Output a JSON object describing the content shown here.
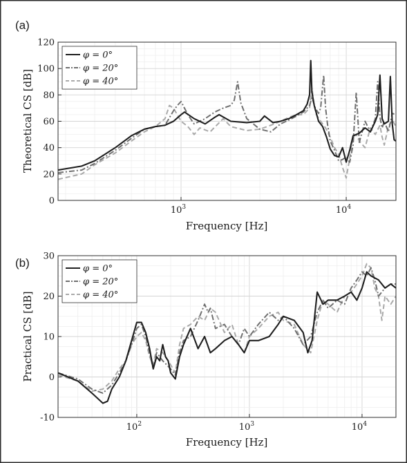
{
  "colors": {
    "s0": "#1f1f1f",
    "s20": "#6f6f6f",
    "s40": "#a9a9a9",
    "grid": "#dedede",
    "border": "#2b2b2b"
  },
  "chart_data": [
    {
      "type": "line",
      "panel_label": "(a)",
      "xlabel": "Frequency [Hz]",
      "ylabel": "Theoretical CS [dB]",
      "xscale": "log",
      "xlim": [
        180,
        20000
      ],
      "ylim": [
        0,
        120
      ],
      "yticks": [
        0,
        20,
        40,
        60,
        80,
        100,
        120
      ],
      "xticks": [
        {
          "value": 1000,
          "label": "10",
          "exp": "3"
        },
        {
          "value": 10000,
          "label": "10",
          "exp": "4"
        }
      ],
      "grid": true,
      "legend_position": "top-left",
      "series": [
        {
          "name": "φ = 0°",
          "style": "solid",
          "color": "#1f1f1f",
          "x": [
            180,
            250,
            300,
            400,
            500,
            600,
            700,
            800,
            900,
            1000,
            1050,
            1200,
            1400,
            1600,
            1700,
            2000,
            2500,
            3000,
            3200,
            3600,
            4000,
            4500,
            5000,
            5500,
            5800,
            6000,
            6100,
            6200,
            6400,
            6800,
            7200,
            7600,
            8000,
            8500,
            9000,
            9500,
            10000,
            10500,
            11000,
            12000,
            13000,
            14000,
            15000,
            15500,
            16000,
            16500,
            17000,
            18000,
            18500,
            19000,
            19500,
            20000
          ],
          "y": [
            23,
            26,
            30,
            40,
            49,
            54,
            56,
            57,
            60,
            65,
            67,
            62,
            58,
            63,
            65,
            60,
            59,
            60,
            64,
            59,
            60,
            62,
            65,
            68,
            73,
            80,
            106,
            82,
            72,
            60,
            56,
            48,
            39,
            34,
            33,
            40,
            29,
            38,
            49,
            51,
            55,
            52,
            60,
            65,
            95,
            62,
            58,
            60,
            94,
            58,
            46,
            45
          ]
        },
        {
          "name": "φ = 20°",
          "style": "dashdot",
          "color": "#6f6f6f",
          "x": [
            180,
            250,
            300,
            400,
            500,
            600,
            700,
            800,
            900,
            950,
            1000,
            1100,
            1200,
            1400,
            1600,
            1800,
            2000,
            2100,
            2200,
            2300,
            2500,
            3000,
            3500,
            4000,
            4500,
            5000,
            5500,
            6000,
            6200,
            6500,
            6800,
            7000,
            7300,
            7500,
            7700,
            8000,
            8500,
            9000,
            9500,
            10000,
            10500,
            11000,
            11500,
            12000,
            13000,
            14000,
            15000,
            15500,
            16000,
            16500,
            17000,
            18000,
            19000,
            20000
          ],
          "y": [
            21,
            23,
            28,
            38,
            47,
            54,
            56,
            57,
            68,
            72,
            75,
            65,
            58,
            62,
            67,
            70,
            72,
            76,
            90,
            74,
            62,
            54,
            52,
            58,
            61,
            64,
            67,
            72,
            78,
            70,
            66,
            70,
            95,
            70,
            58,
            45,
            38,
            30,
            31,
            33,
            29,
            42,
            82,
            44,
            60,
            52,
            62,
            90,
            63,
            55,
            60,
            52,
            66,
            65
          ]
        },
        {
          "name": "φ = 40°",
          "style": "dashed",
          "color": "#a9a9a9",
          "x": [
            180,
            250,
            300,
            400,
            500,
            600,
            700,
            800,
            850,
            900,
            1000,
            1100,
            1200,
            1300,
            1500,
            1800,
            2000,
            2500,
            3000,
            3500,
            4000,
            4500,
            5000,
            5500,
            6000,
            6200,
            6400,
            6600,
            7000,
            7500,
            8000,
            8500,
            9000,
            9500,
            10000,
            10500,
            11000,
            11500,
            12000,
            13000,
            14000,
            15000,
            16000,
            16500,
            17000,
            18000,
            19000,
            20000
          ],
          "y": [
            16,
            20,
            27,
            36,
            45,
            52,
            56,
            62,
            72,
            70,
            60,
            56,
            50,
            55,
            52,
            62,
            56,
            53,
            54,
            57,
            60,
            63,
            65,
            65,
            70,
            85,
            72,
            65,
            60,
            55,
            48,
            40,
            35,
            25,
            17,
            32,
            48,
            50,
            45,
            40,
            55,
            50,
            57,
            48,
            42,
            56,
            61,
            56
          ]
        }
      ]
    },
    {
      "type": "line",
      "panel_label": "(b)",
      "xlabel": "Frequency [Hz]",
      "ylabel": "Practical CS [dB]",
      "xscale": "log",
      "xlim": [
        20,
        20000
      ],
      "ylim": [
        -10,
        30
      ],
      "yticks": [
        -10,
        0,
        10,
        20,
        30
      ],
      "xticks": [
        {
          "value": 100,
          "label": "10",
          "exp": "2"
        },
        {
          "value": 1000,
          "label": "10",
          "exp": "3"
        },
        {
          "value": 10000,
          "label": "10",
          "exp": "4"
        }
      ],
      "grid": true,
      "legend_position": "top-left",
      "series": [
        {
          "name": "φ = 0°",
          "style": "solid",
          "color": "#1f1f1f",
          "x": [
            20,
            30,
            40,
            50,
            55,
            60,
            70,
            80,
            90,
            100,
            110,
            120,
            130,
            140,
            150,
            160,
            170,
            180,
            190,
            200,
            220,
            240,
            260,
            300,
            350,
            400,
            450,
            500,
            600,
            700,
            800,
            900,
            1000,
            1200,
            1500,
            1800,
            2000,
            2500,
            3000,
            3300,
            3600,
            4000,
            4500,
            5000,
            6000,
            7000,
            8000,
            9000,
            10000,
            11000,
            12000,
            14000,
            16000,
            18000,
            20000
          ],
          "y": [
            1,
            -1,
            -4,
            -6.5,
            -6,
            -3,
            0,
            4,
            9,
            13.5,
            13.5,
            11,
            7,
            2,
            5,
            4,
            8,
            5,
            4,
            1,
            -0.5,
            5,
            8,
            12,
            7,
            10,
            6,
            7,
            9,
            10,
            8,
            6,
            9,
            9,
            10,
            13,
            15,
            14,
            11,
            6,
            9,
            21,
            18,
            19,
            19,
            20,
            21,
            19,
            22,
            26,
            25,
            24,
            22,
            23,
            22
          ]
        },
        {
          "name": "φ = 20°",
          "style": "dashdot",
          "color": "#6f6f6f",
          "x": [
            20,
            30,
            40,
            50,
            60,
            70,
            80,
            90,
            100,
            110,
            120,
            130,
            140,
            150,
            170,
            200,
            220,
            240,
            260,
            300,
            350,
            400,
            430,
            450,
            500,
            600,
            700,
            800,
            900,
            1000,
            1200,
            1500,
            1800,
            2000,
            2500,
            3000,
            3500,
            4000,
            4500,
            5000,
            6000,
            7000,
            8000,
            9000,
            10000,
            11000,
            12000,
            13000,
            14000,
            16000,
            18000,
            20000
          ],
          "y": [
            1,
            -0.5,
            -3,
            -4,
            -2,
            1,
            4,
            8,
            12,
            13,
            10,
            6,
            2,
            6,
            4,
            2,
            0.5,
            6,
            9,
            10,
            14,
            18,
            16,
            17,
            12,
            13,
            10,
            8,
            12,
            10,
            13,
            16,
            14,
            15,
            12,
            8,
            10,
            16,
            19,
            17,
            19,
            18,
            22,
            24,
            26,
            25,
            27,
            24,
            20,
            22,
            23,
            23
          ]
        },
        {
          "name": "φ = 40°",
          "style": "dashed",
          "color": "#a9a9a9",
          "x": [
            20,
            30,
            40,
            50,
            60,
            70,
            80,
            90,
            100,
            110,
            120,
            130,
            140,
            150,
            170,
            200,
            220,
            240,
            260,
            300,
            350,
            400,
            450,
            500,
            600,
            700,
            800,
            900,
            1000,
            1200,
            1500,
            1800,
            2000,
            2500,
            3000,
            3500,
            4000,
            4500,
            5000,
            6000,
            7000,
            8000,
            9000,
            10000,
            11000,
            12000,
            13000,
            14000,
            15000,
            16000,
            18000,
            20000
          ],
          "y": [
            0.5,
            -1,
            -3.5,
            -3,
            -1,
            2,
            4,
            8,
            10,
            11,
            9,
            5,
            3,
            7,
            6,
            3,
            1,
            8,
            12,
            13,
            15,
            14,
            17,
            16,
            11,
            13,
            8,
            6,
            10,
            12,
            15,
            16,
            14,
            13,
            8,
            6,
            14,
            19,
            18,
            16,
            20,
            21,
            23,
            25,
            28,
            27,
            22,
            20,
            14,
            20,
            18,
            20
          ]
        }
      ]
    }
  ]
}
